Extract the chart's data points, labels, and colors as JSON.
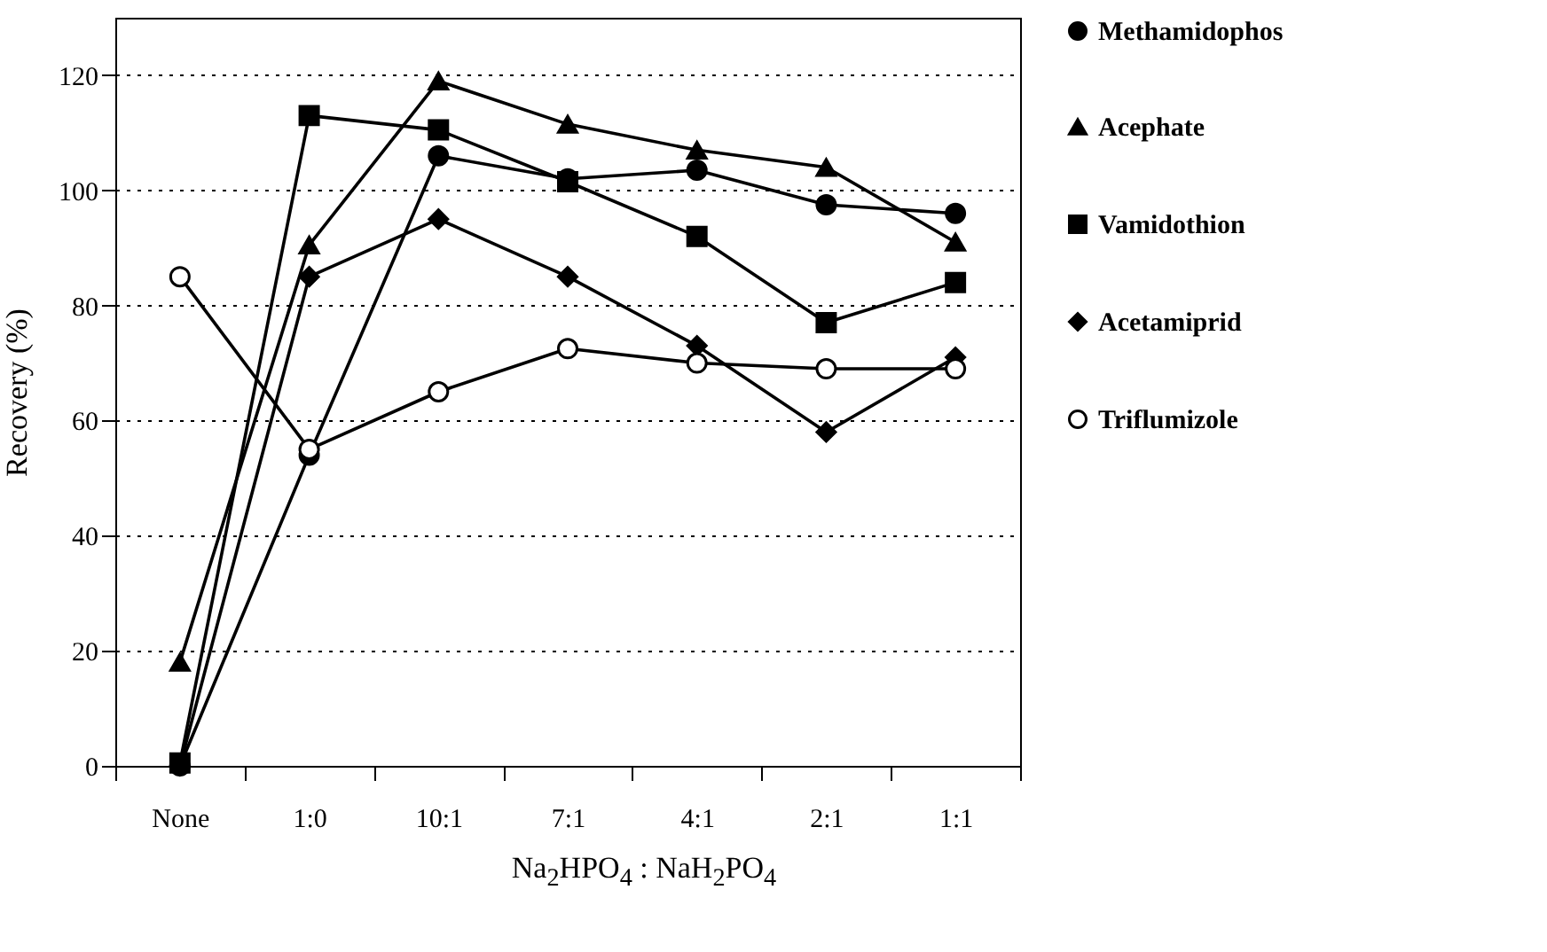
{
  "chart_data": {
    "type": "line",
    "xlabel": "Na$_{2}$HPO$_{4}$ : NaH$_{2}$PO$_{4}$",
    "ylabel": "Recovery (%)",
    "categories": [
      "None",
      "1:0",
      "10:1",
      "7:1",
      "4:1",
      "2:1",
      "1:1"
    ],
    "series": [
      {
        "name": "Methamidophos",
        "color": "#000000",
        "marker": "circle",
        "values": [
          0,
          54,
          106,
          102,
          103.5,
          97.5,
          96
        ]
      },
      {
        "name": "Acephate",
        "color": "#000000",
        "marker": "triangle",
        "values": [
          18,
          90.5,
          119,
          111.5,
          107,
          104,
          91
        ]
      },
      {
        "name": "Vamidothion",
        "color": "#000000",
        "marker": "square",
        "values": [
          0.5,
          113,
          110.5,
          101.5,
          92,
          77,
          84
        ]
      },
      {
        "name": "Acetamiprid",
        "color": "#000000",
        "marker": "diamond",
        "values": [
          0,
          85,
          95,
          85,
          73,
          58,
          71
        ]
      },
      {
        "name": "Triflumizole",
        "color": "#000000",
        "marker": "circle-open",
        "values": [
          85,
          55,
          65,
          72.5,
          70,
          69,
          69
        ]
      }
    ],
    "ylim": [
      0,
      130
    ],
    "yticks": [
      0,
      20,
      40,
      60,
      80,
      100,
      120
    ],
    "grid": "y",
    "legend": "right",
    "line_style": "solid"
  }
}
